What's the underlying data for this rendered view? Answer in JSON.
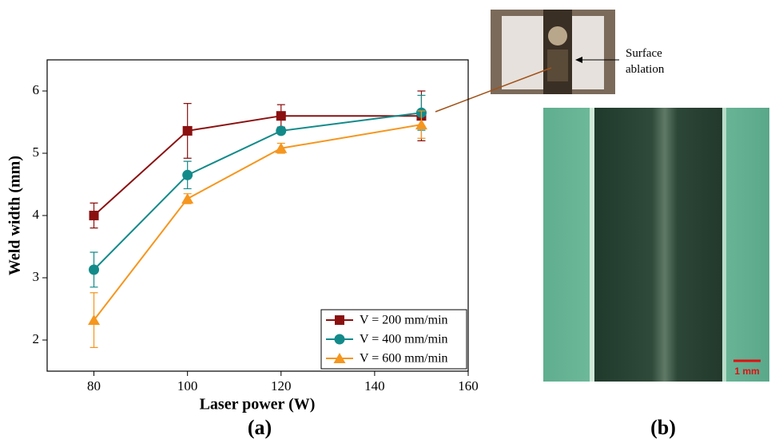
{
  "chart_data": {
    "type": "line",
    "x_label": "Laser power (W)",
    "y_label": "Weld width (mm)",
    "x": [
      80,
      100,
      120,
      150
    ],
    "series": [
      {
        "name": "V = 200 mm/min",
        "color": "#8b1010",
        "marker": "square",
        "values": [
          4.0,
          5.36,
          5.6,
          5.6
        ],
        "errors": [
          0.2,
          0.44,
          0.18,
          0.4
        ]
      },
      {
        "name": "V = 400 mm/min",
        "color": "#138a8a",
        "marker": "circle",
        "values": [
          3.13,
          4.65,
          5.36,
          5.65
        ],
        "errors": [
          0.28,
          0.22,
          0.05,
          0.28
        ]
      },
      {
        "name": "V = 600 mm/min",
        "color": "#f5961e",
        "marker": "triangle",
        "values": [
          2.32,
          4.27,
          5.08,
          5.46
        ],
        "errors": [
          0.44,
          0.08,
          0.08,
          0.22
        ]
      }
    ],
    "xlim": [
      70,
      160
    ],
    "xticks": [
      80,
      100,
      120,
      140,
      160
    ],
    "ylim": [
      1.5,
      6.5
    ],
    "yticks": [
      2,
      3,
      4,
      5,
      6
    ],
    "legend": "lower right"
  },
  "annotation": "Surface ablation",
  "scale_bar": "1 mm",
  "panel_labels": [
    "(a)",
    "(b)"
  ]
}
